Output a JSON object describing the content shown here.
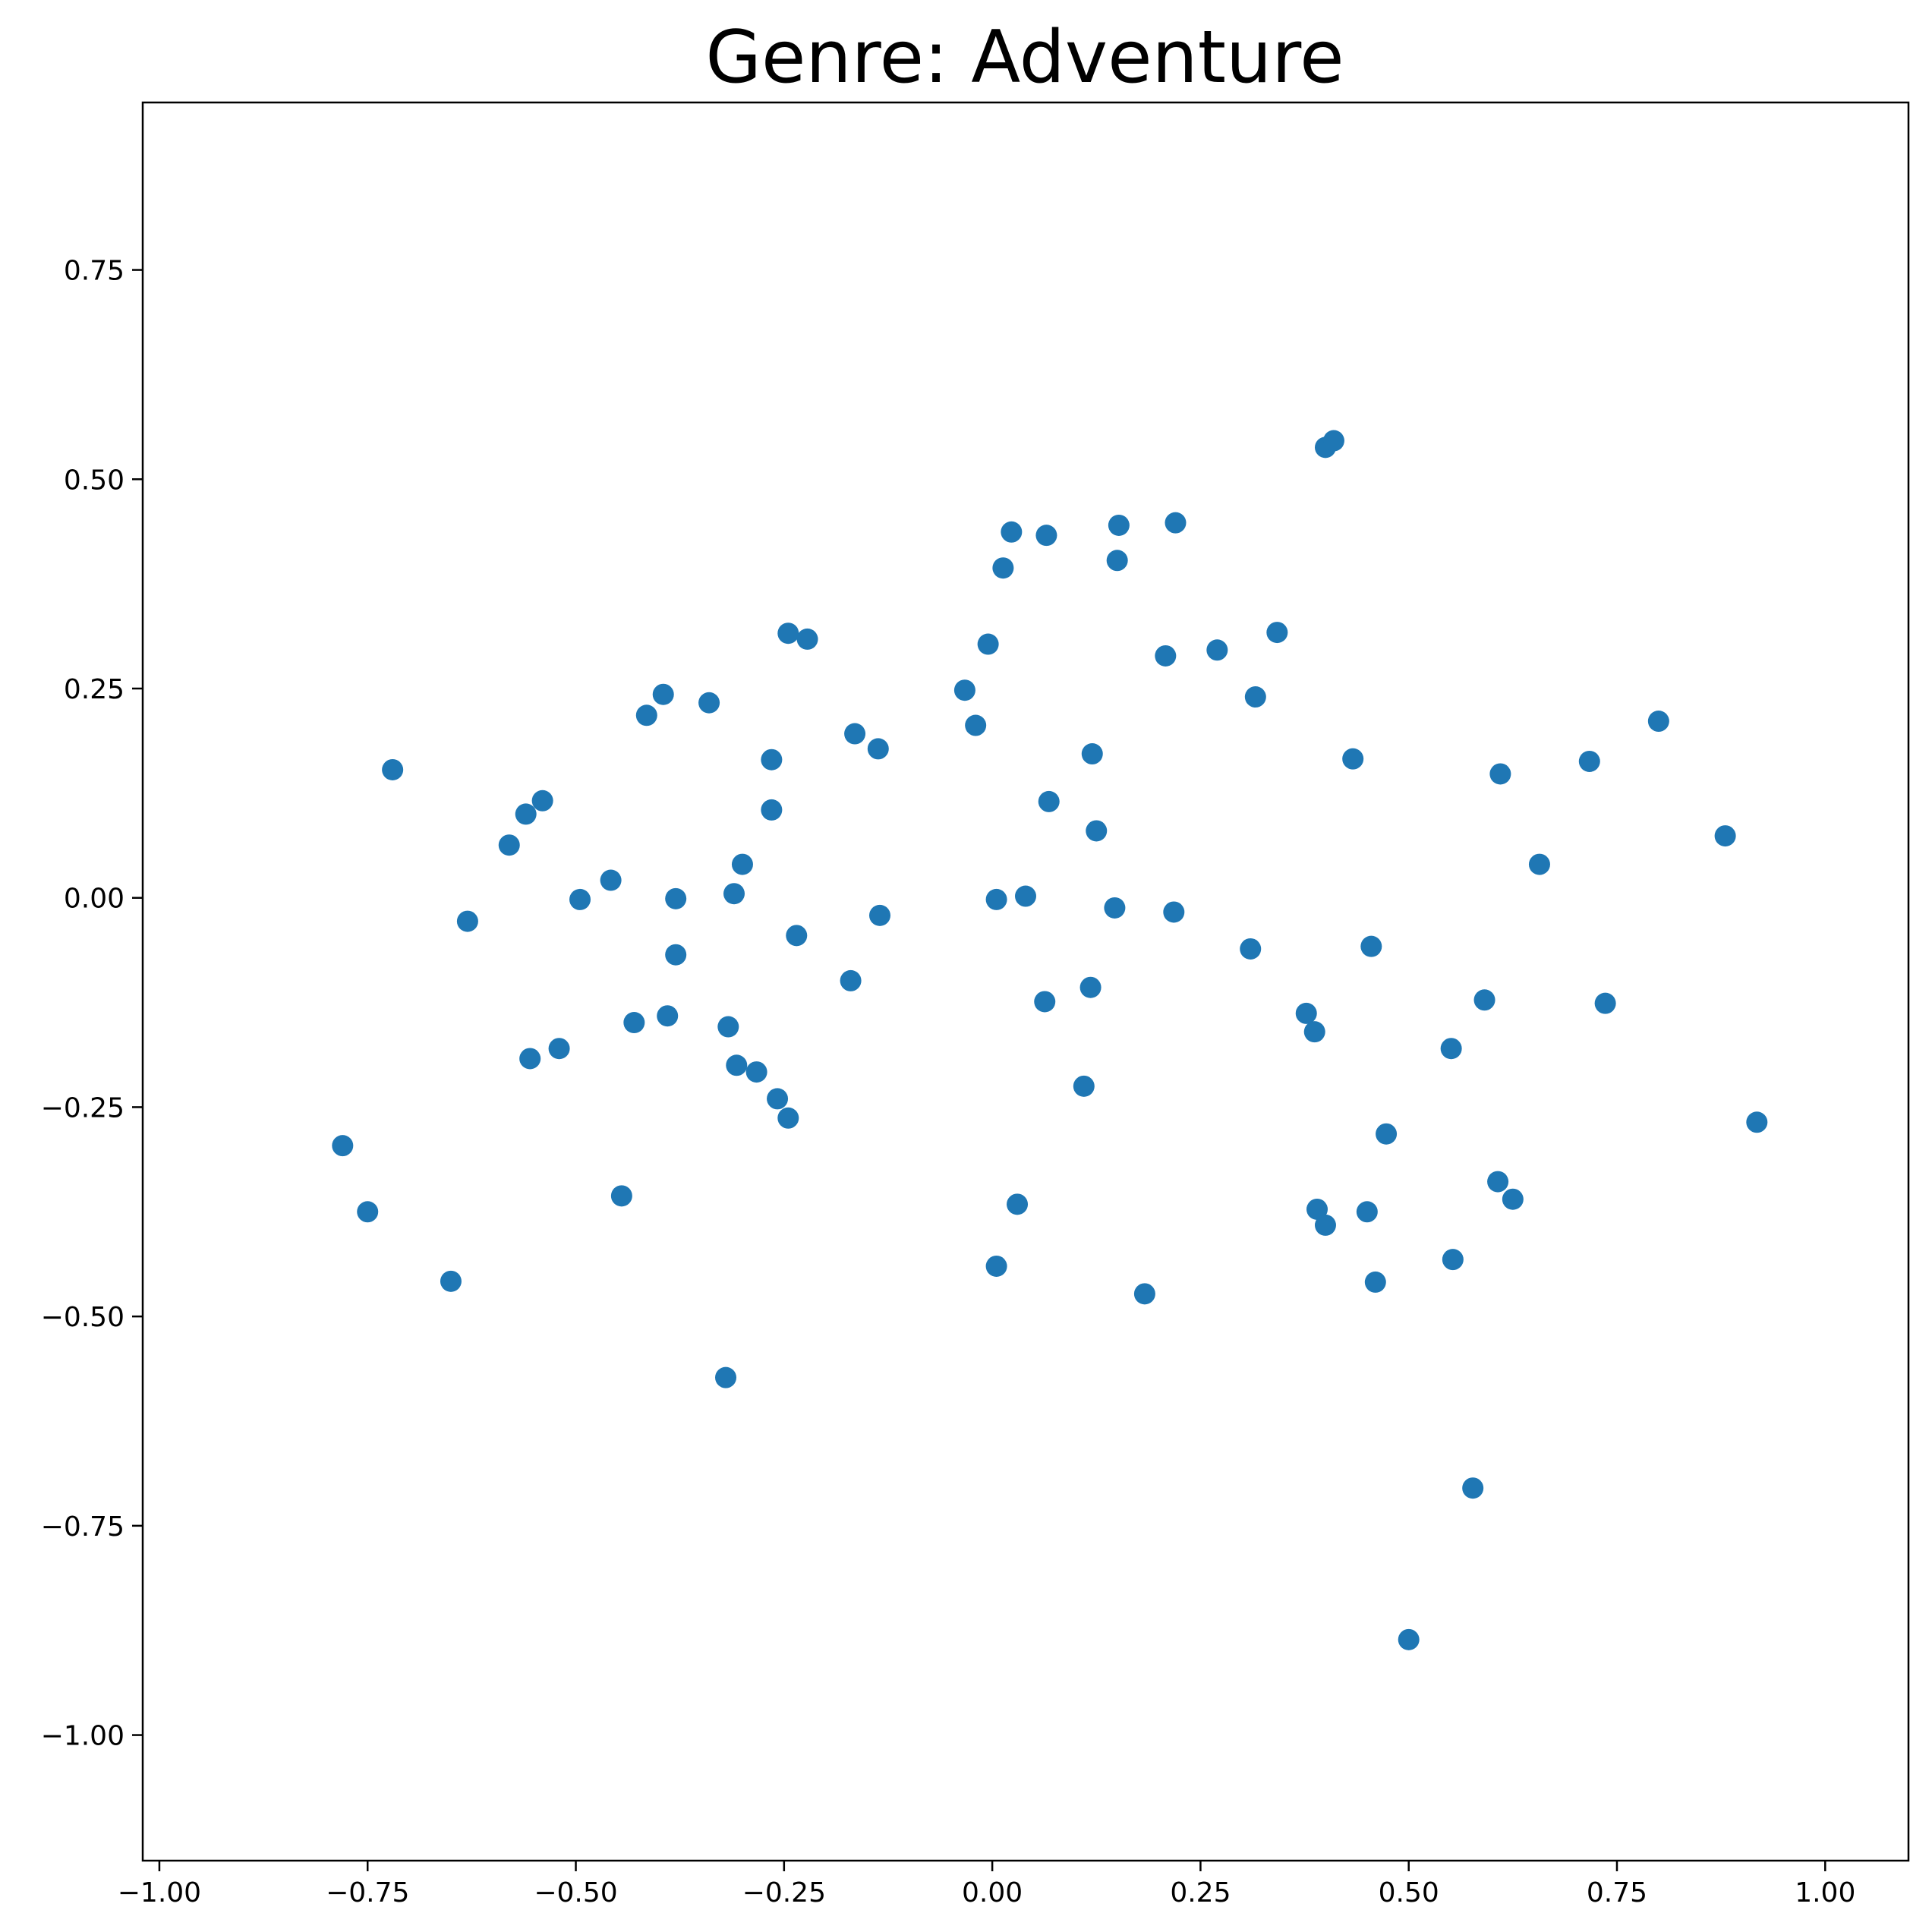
{
  "chart_data": {
    "type": "scatter",
    "title": "Genre: Adventure",
    "xlabel": "",
    "ylabel": "",
    "xlim": [
      -1.02,
      1.1
    ],
    "ylim": [
      -1.15,
      0.95
    ],
    "x_ticks": [
      -1.0,
      -0.75,
      -0.5,
      -0.25,
      0.0,
      0.25,
      0.5,
      0.75,
      1.0
    ],
    "x_tick_labels": [
      "−1.00",
      "−0.75",
      "−0.50",
      "−0.25",
      "0.00",
      "0.25",
      "0.50",
      "0.75",
      "1.00"
    ],
    "y_ticks": [
      0.75,
      0.5,
      0.25,
      0.0,
      -0.25,
      -0.5,
      -0.75,
      -1.0
    ],
    "y_tick_labels": [
      "0.75",
      "0.50",
      "0.25",
      "0.00",
      "−0.25",
      "−0.50",
      "−0.75",
      "−1.00"
    ],
    "grid": false,
    "color": "#1f77b4",
    "series": [
      {
        "points": [
          [
            -0.78,
            -0.296
          ],
          [
            -0.75,
            -0.375
          ],
          [
            -0.72,
            0.153
          ],
          [
            -0.65,
            -0.458
          ],
          [
            -0.63,
            -0.028
          ],
          [
            -0.58,
            0.063
          ],
          [
            -0.56,
            0.1
          ],
          [
            -0.555,
            -0.192
          ],
          [
            -0.54,
            0.116
          ],
          [
            -0.52,
            -0.18
          ],
          [
            -0.495,
            -0.002
          ],
          [
            -0.458,
            0.021
          ],
          [
            -0.445,
            -0.356
          ],
          [
            -0.43,
            -0.149
          ],
          [
            -0.415,
            0.218
          ],
          [
            -0.395,
            0.243
          ],
          [
            -0.39,
            -0.141
          ],
          [
            -0.38,
            -0.001
          ],
          [
            -0.38,
            -0.068
          ],
          [
            -0.34,
            0.233
          ],
          [
            -0.32,
            -0.573
          ],
          [
            -0.317,
            -0.154
          ],
          [
            -0.31,
            0.005
          ],
          [
            -0.307,
            -0.2
          ],
          [
            -0.3,
            0.04
          ],
          [
            -0.283,
            -0.208
          ],
          [
            -0.265,
            0.165
          ],
          [
            -0.265,
            0.105
          ],
          [
            -0.258,
            -0.24
          ],
          [
            -0.245,
            0.316
          ],
          [
            -0.245,
            -0.263
          ],
          [
            -0.235,
            -0.045
          ],
          [
            -0.222,
            0.309
          ],
          [
            -0.17,
            -0.099
          ],
          [
            -0.165,
            0.196
          ],
          [
            -0.137,
            0.178
          ],
          [
            -0.135,
            -0.021
          ],
          [
            -0.033,
            0.248
          ],
          [
            -0.02,
            0.206
          ],
          [
            -0.005,
            0.303
          ],
          [
            0.005,
            -0.002
          ],
          [
            0.005,
            -0.44
          ],
          [
            0.013,
            0.394
          ],
          [
            0.023,
            0.437
          ],
          [
            0.03,
            -0.366
          ],
          [
            0.04,
            0.002
          ],
          [
            0.063,
            -0.124
          ],
          [
            0.065,
            0.433
          ],
          [
            0.068,
            0.115
          ],
          [
            0.11,
            -0.225
          ],
          [
            0.118,
            -0.107
          ],
          [
            0.12,
            0.172
          ],
          [
            0.125,
            0.08
          ],
          [
            0.147,
            -0.012
          ],
          [
            0.15,
            0.403
          ],
          [
            0.152,
            0.445
          ],
          [
            0.183,
            -0.473
          ],
          [
            0.208,
            0.289
          ],
          [
            0.218,
            -0.017
          ],
          [
            0.22,
            0.448
          ],
          [
            0.27,
            0.296
          ],
          [
            0.31,
            -0.061
          ],
          [
            0.316,
            0.24
          ],
          [
            0.342,
            0.317
          ],
          [
            0.377,
            -0.138
          ],
          [
            0.387,
            -0.16
          ],
          [
            0.39,
            -0.372
          ],
          [
            0.4,
            0.538
          ],
          [
            0.4,
            -0.391
          ],
          [
            0.41,
            0.546
          ],
          [
            0.433,
            0.166
          ],
          [
            0.45,
            -0.375
          ],
          [
            0.455,
            -0.058
          ],
          [
            0.46,
            -0.459
          ],
          [
            0.473,
            -0.282
          ],
          [
            0.5,
            -0.886
          ],
          [
            0.551,
            -0.18
          ],
          [
            0.553,
            -0.432
          ],
          [
            0.577,
            -0.705
          ],
          [
            0.591,
            -0.122
          ],
          [
            0.607,
            -0.339
          ],
          [
            0.61,
            0.148
          ],
          [
            0.625,
            -0.36
          ],
          [
            0.657,
            0.04
          ],
          [
            0.717,
            0.163
          ],
          [
            0.736,
            -0.126
          ],
          [
            0.8,
            0.211
          ],
          [
            0.88,
            0.074
          ],
          [
            0.918,
            -0.268
          ]
        ]
      }
    ]
  }
}
